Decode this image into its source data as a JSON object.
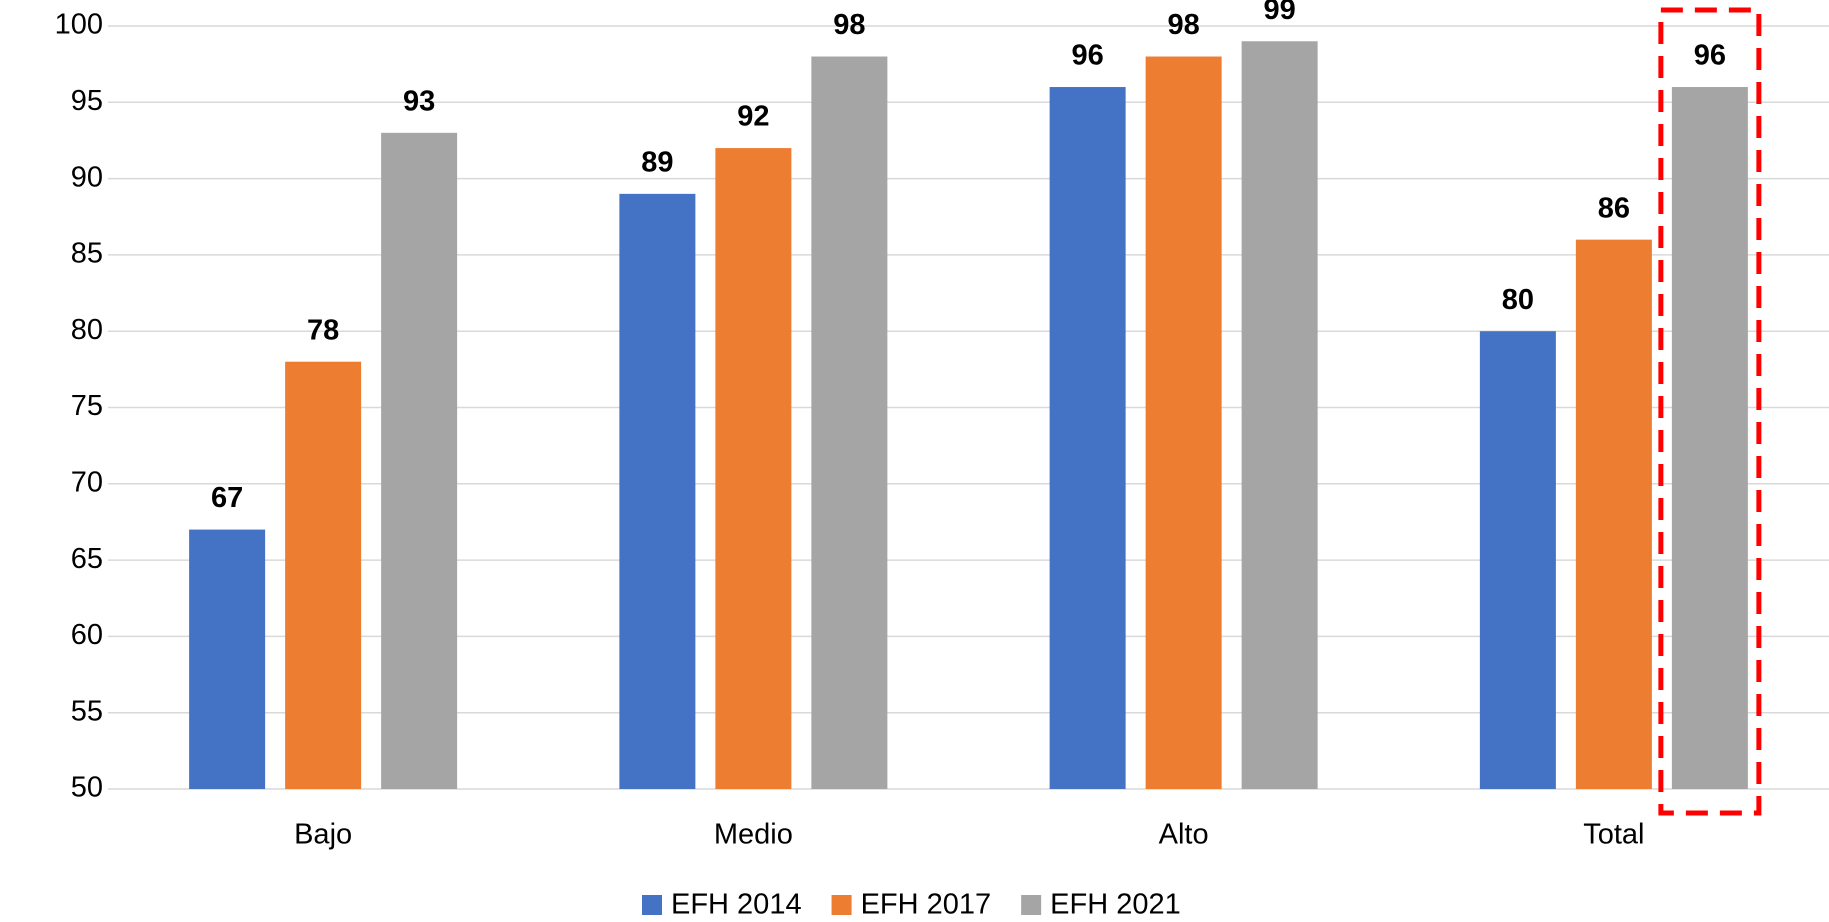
{
  "chart_data": {
    "type": "bar",
    "categories": [
      "Bajo",
      "Medio",
      "Alto",
      "Total"
    ],
    "series": [
      {
        "name": "EFH 2014",
        "color": "#4472c4",
        "values": [
          67,
          89,
          96,
          80
        ]
      },
      {
        "name": "EFH 2017",
        "color": "#ed7d31",
        "values": [
          78,
          92,
          98,
          86
        ]
      },
      {
        "name": "EFH 2021",
        "color": "#a5a5a5",
        "values": [
          93,
          98,
          99,
          96
        ]
      }
    ],
    "ylim": [
      50,
      100
    ],
    "yticks": [
      50,
      55,
      60,
      65,
      70,
      75,
      80,
      85,
      90,
      95,
      100
    ],
    "grid": true,
    "legend": "bottom"
  }
}
